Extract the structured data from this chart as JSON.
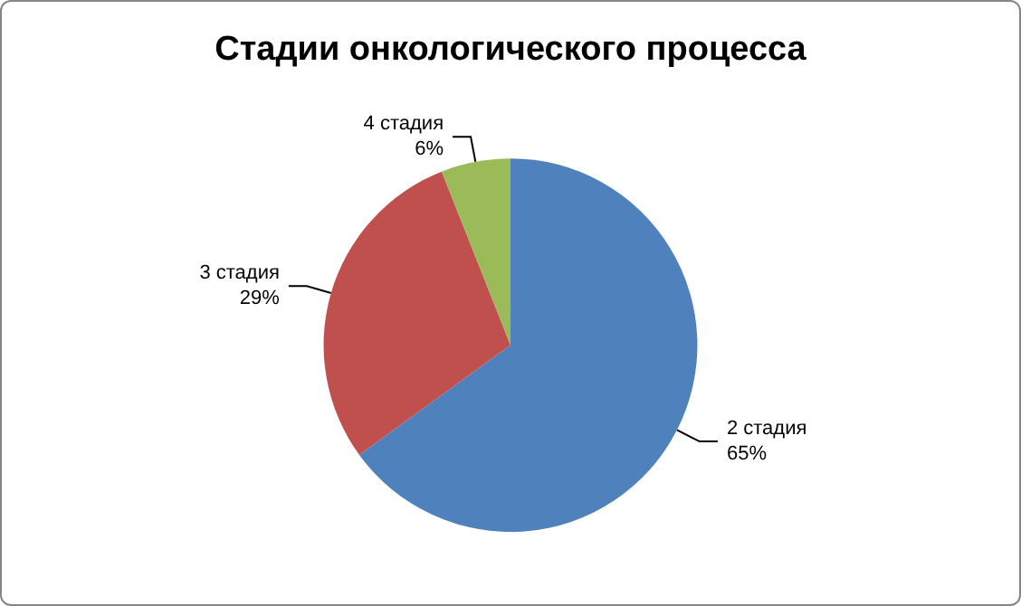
{
  "chart_data": {
    "type": "pie",
    "title": "Стадии онкологического процесса",
    "categories": [
      "2 стадия",
      "3 стадия",
      "4 стадия"
    ],
    "values": [
      65,
      29,
      6
    ],
    "colors": [
      "#4f81bd",
      "#c0504d",
      "#9bbb59"
    ],
    "value_labels": [
      "65%",
      "29%",
      "6%"
    ],
    "legend": false
  }
}
